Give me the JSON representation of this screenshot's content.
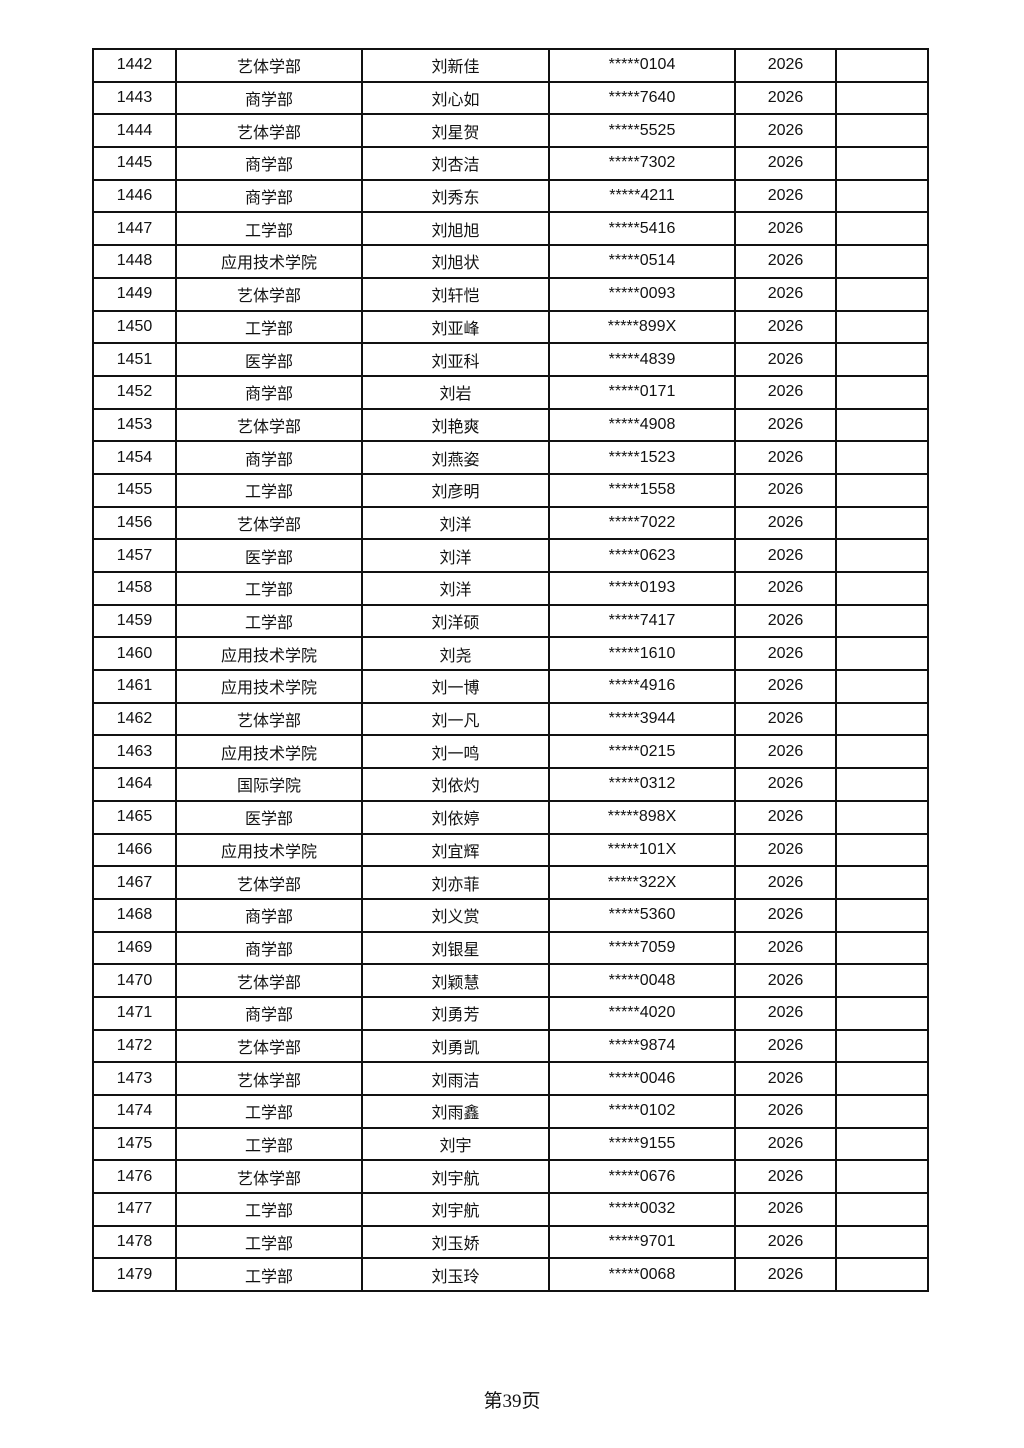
{
  "table": {
    "rows": [
      [
        "1442",
        "艺体学部",
        "刘新佳",
        "*****0104",
        "2026",
        ""
      ],
      [
        "1443",
        "商学部",
        "刘心如",
        "*****7640",
        "2026",
        ""
      ],
      [
        "1444",
        "艺体学部",
        "刘星贺",
        "*****5525",
        "2026",
        ""
      ],
      [
        "1445",
        "商学部",
        "刘杏洁",
        "*****7302",
        "2026",
        ""
      ],
      [
        "1446",
        "商学部",
        "刘秀东",
        "*****4211",
        "2026",
        ""
      ],
      [
        "1447",
        "工学部",
        "刘旭旭",
        "*****5416",
        "2026",
        ""
      ],
      [
        "1448",
        "应用技术学院",
        "刘旭状",
        "*****0514",
        "2026",
        ""
      ],
      [
        "1449",
        "艺体学部",
        "刘轩恺",
        "*****0093",
        "2026",
        ""
      ],
      [
        "1450",
        "工学部",
        "刘亚峰",
        "*****899X",
        "2026",
        ""
      ],
      [
        "1451",
        "医学部",
        "刘亚科",
        "*****4839",
        "2026",
        ""
      ],
      [
        "1452",
        "商学部",
        "刘岩",
        "*****0171",
        "2026",
        ""
      ],
      [
        "1453",
        "艺体学部",
        "刘艳爽",
        "*****4908",
        "2026",
        ""
      ],
      [
        "1454",
        "商学部",
        "刘燕姿",
        "*****1523",
        "2026",
        ""
      ],
      [
        "1455",
        "工学部",
        "刘彦明",
        "*****1558",
        "2026",
        ""
      ],
      [
        "1456",
        "艺体学部",
        "刘洋",
        "*****7022",
        "2026",
        ""
      ],
      [
        "1457",
        "医学部",
        "刘洋",
        "*****0623",
        "2026",
        ""
      ],
      [
        "1458",
        "工学部",
        "刘洋",
        "*****0193",
        "2026",
        ""
      ],
      [
        "1459",
        "工学部",
        "刘洋硕",
        "*****7417",
        "2026",
        ""
      ],
      [
        "1460",
        "应用技术学院",
        "刘尧",
        "*****1610",
        "2026",
        ""
      ],
      [
        "1461",
        "应用技术学院",
        "刘一博",
        "*****4916",
        "2026",
        ""
      ],
      [
        "1462",
        "艺体学部",
        "刘一凡",
        "*****3944",
        "2026",
        ""
      ],
      [
        "1463",
        "应用技术学院",
        "刘一鸣",
        "*****0215",
        "2026",
        ""
      ],
      [
        "1464",
        "国际学院",
        "刘依灼",
        "*****0312",
        "2026",
        ""
      ],
      [
        "1465",
        "医学部",
        "刘依婷",
        "*****898X",
        "2026",
        ""
      ],
      [
        "1466",
        "应用技术学院",
        "刘宜辉",
        "*****101X",
        "2026",
        ""
      ],
      [
        "1467",
        "艺体学部",
        "刘亦菲",
        "*****322X",
        "2026",
        ""
      ],
      [
        "1468",
        "商学部",
        "刘义赏",
        "*****5360",
        "2026",
        ""
      ],
      [
        "1469",
        "商学部",
        "刘银星",
        "*****7059",
        "2026",
        ""
      ],
      [
        "1470",
        "艺体学部",
        "刘颖慧",
        "*****0048",
        "2026",
        ""
      ],
      [
        "1471",
        "商学部",
        "刘勇芳",
        "*****4020",
        "2026",
        ""
      ],
      [
        "1472",
        "艺体学部",
        "刘勇凯",
        "*****9874",
        "2026",
        ""
      ],
      [
        "1473",
        "艺体学部",
        "刘雨洁",
        "*****0046",
        "2026",
        ""
      ],
      [
        "1474",
        "工学部",
        "刘雨鑫",
        "*****0102",
        "2026",
        ""
      ],
      [
        "1475",
        "工学部",
        "刘宇",
        "*****9155",
        "2026",
        ""
      ],
      [
        "1476",
        "艺体学部",
        "刘宇航",
        "*****0676",
        "2026",
        ""
      ],
      [
        "1477",
        "工学部",
        "刘宇航",
        "*****0032",
        "2026",
        ""
      ],
      [
        "1478",
        "工学部",
        "刘玉娇",
        "*****9701",
        "2026",
        ""
      ],
      [
        "1479",
        "工学部",
        "刘玉玲",
        "*****0068",
        "2026",
        ""
      ]
    ]
  },
  "footer": {
    "page_label": "第39页"
  }
}
